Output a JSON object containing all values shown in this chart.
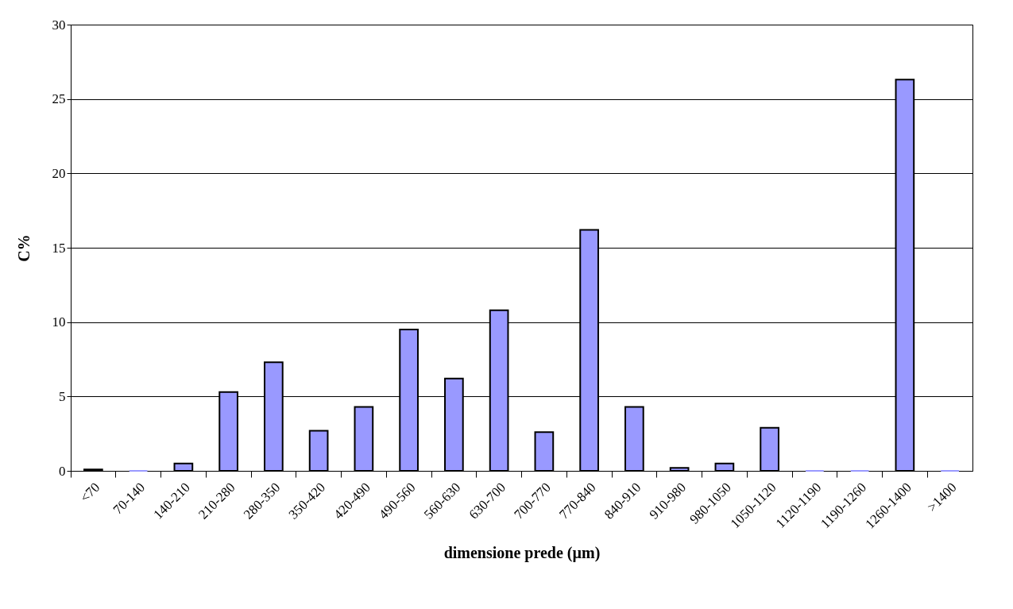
{
  "chart_data": {
    "type": "bar",
    "xlabel": "dimensione prede (µm)",
    "ylabel": "C%",
    "categories": [
      "<70",
      "70-140",
      "140-210",
      "210-280",
      "280-350",
      "350-420",
      "420-490",
      "490-560",
      "560-630",
      "630-700",
      "700-770",
      "770-840",
      "840-910",
      "910-980",
      "980-1050",
      "1050-1120",
      "1120-1190",
      "1190-1260",
      "1260-1400",
      ">1400"
    ],
    "values": [
      0.1,
      0,
      0.5,
      5.3,
      7.3,
      2.7,
      4.3,
      9.5,
      6.2,
      10.8,
      2.6,
      16.2,
      4.3,
      0.2,
      0.5,
      2.9,
      0,
      0,
      26.3,
      0
    ],
    "color": "#9999ff",
    "ylim": [
      0,
      30
    ],
    "yticks": [
      0,
      5,
      10,
      15,
      20,
      25,
      30
    ],
    "grid": "y"
  }
}
